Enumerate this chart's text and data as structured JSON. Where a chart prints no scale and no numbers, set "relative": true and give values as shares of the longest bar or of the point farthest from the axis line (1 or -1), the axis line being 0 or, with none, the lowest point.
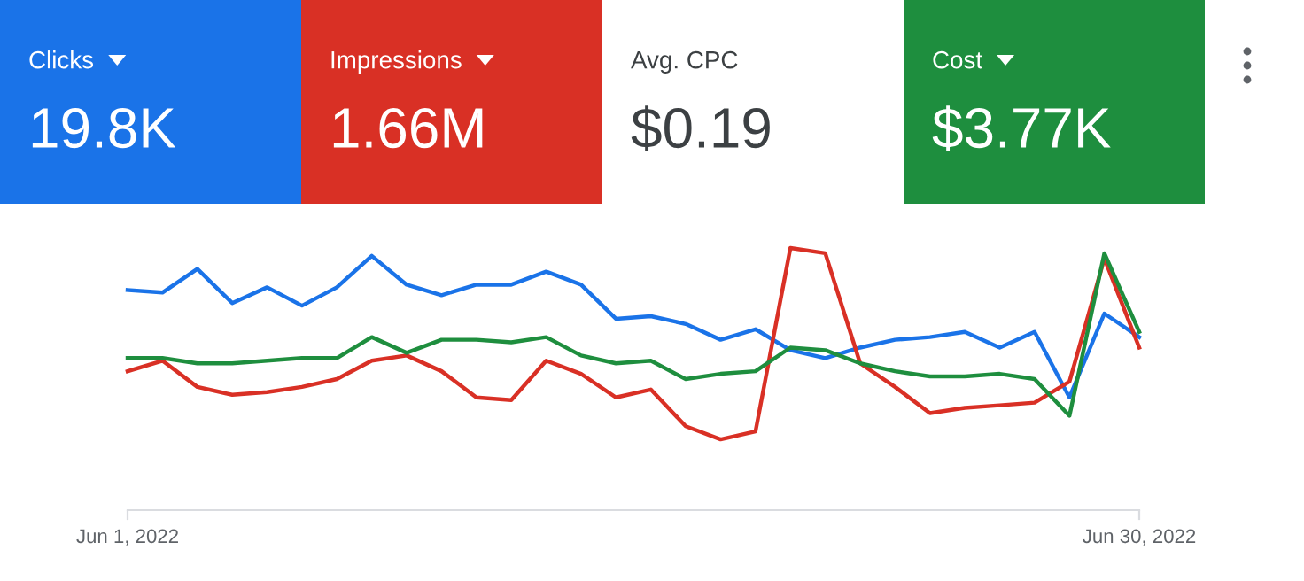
{
  "chart_data": [
    {
      "type": "other",
      "annotations": [
        "Clicks",
        "19.8K",
        "Impressions",
        "1.66M",
        "Avg. CPC",
        "$0.19",
        "Cost",
        "$3.77K"
      ],
      "colors": [
        "#1a73e8",
        "#d93025",
        "#ffffff",
        "#1e8e3e"
      ]
    },
    {
      "type": "line",
      "relative": true,
      "x": [
        "2022-06-01",
        "2022-06-02",
        "2022-06-03",
        "2022-06-04",
        "2022-06-05",
        "2022-06-06",
        "2022-06-07",
        "2022-06-08",
        "2022-06-09",
        "2022-06-10",
        "2022-06-11",
        "2022-06-12",
        "2022-06-13",
        "2022-06-14",
        "2022-06-15",
        "2022-06-16",
        "2022-06-17",
        "2022-06-18",
        "2022-06-19",
        "2022-06-20",
        "2022-06-21",
        "2022-06-22",
        "2022-06-23",
        "2022-06-24",
        "2022-06-25",
        "2022-06-26",
        "2022-06-27",
        "2022-06-28",
        "2022-06-29",
        "2022-06-30"
      ],
      "xlim": [
        "2022-06-01",
        "2022-06-30"
      ],
      "xticks": [
        {
          "value": "2022-06-01",
          "label": "Jun 1, 2022"
        },
        {
          "value": "2022-06-30",
          "label": "Jun 30, 2022"
        }
      ],
      "series": [
        {
          "color": "#1a73e8",
          "values": [
            0.84,
            0.83,
            0.92,
            0.79,
            0.85,
            0.78,
            0.85,
            0.97,
            0.86,
            0.82,
            0.86,
            0.86,
            0.91,
            0.86,
            0.73,
            0.74,
            0.71,
            0.65,
            0.69,
            0.61,
            0.58,
            0.62,
            0.65,
            0.66,
            0.68,
            0.62,
            0.68,
            0.43,
            0.75,
            0.66
          ]
        },
        {
          "color": "#d93025",
          "values": [
            0.53,
            0.57,
            0.47,
            0.44,
            0.45,
            0.47,
            0.5,
            0.57,
            0.59,
            0.53,
            0.43,
            0.42,
            0.57,
            0.52,
            0.43,
            0.46,
            0.32,
            0.27,
            0.3,
            1.0,
            0.98,
            0.56,
            0.47,
            0.37,
            0.39,
            0.4,
            0.41,
            0.49,
            0.96,
            0.62
          ]
        },
        {
          "color": "#1e8e3e",
          "values": [
            0.58,
            0.58,
            0.56,
            0.56,
            0.57,
            0.58,
            0.58,
            0.66,
            0.6,
            0.65,
            0.65,
            0.64,
            0.66,
            0.59,
            0.56,
            0.57,
            0.5,
            0.52,
            0.53,
            0.62,
            0.61,
            0.56,
            0.53,
            0.51,
            0.51,
            0.52,
            0.5,
            0.36,
            0.98,
            0.68
          ]
        }
      ],
      "marker": "none",
      "line_style": "solid"
    }
  ]
}
